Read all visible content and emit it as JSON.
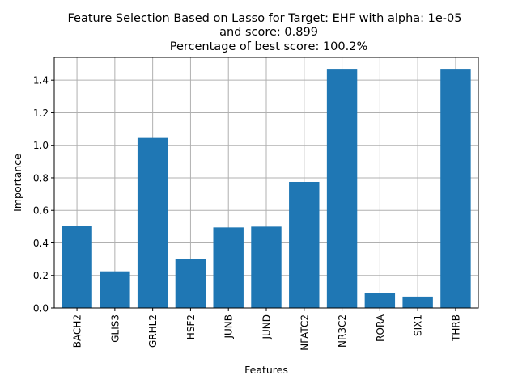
{
  "chart_data": {
    "type": "bar",
    "title_lines": [
      "Feature Selection Based on Lasso for Target: EHF with alpha: 1e-05",
      "and score: 0.899",
      "Percentage of best score: 100.2%"
    ],
    "xlabel": "Features",
    "ylabel": "Importance",
    "categories": [
      "BACH2",
      "GLIS3",
      "GRHL2",
      "HSF2",
      "JUNB",
      "JUND",
      "NFATC2",
      "NR3C2",
      "RORA",
      "SIX1",
      "THRB"
    ],
    "values": [
      0.505,
      0.225,
      1.045,
      0.3,
      0.495,
      0.5,
      0.775,
      1.47,
      0.09,
      0.07,
      1.47
    ],
    "ylim": [
      0,
      1.54
    ],
    "yticks": [
      0.0,
      0.2,
      0.4,
      0.6,
      0.8,
      1.0,
      1.2,
      1.4
    ],
    "grid": true,
    "bar_color": "#1f77b4",
    "grid_color": "#b0b0b0"
  }
}
